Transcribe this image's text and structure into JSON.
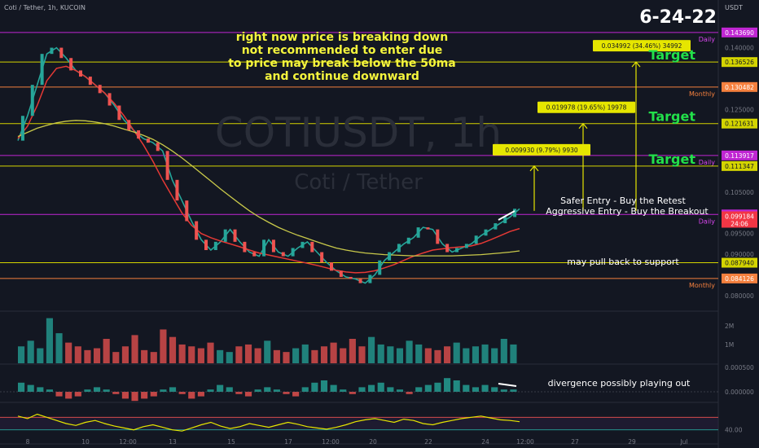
{
  "header": {
    "symbol_line": "Coti / Tether, 1h, KUCOIN"
  },
  "date_stamp": "6-24-22",
  "watermark": {
    "symbol": "COTIUSDT, 1h",
    "name": "Coti / Tether"
  },
  "currency": "USDT",
  "annotations": {
    "main_note": [
      "right now price is breaking down",
      "not recommended to enter due",
      "to price may break below the 50ma",
      "and continue downward"
    ],
    "safer_entry": "Safer Entry - Buy the Retest",
    "aggressive_entry": "Aggressive Entry - Buy the Breakout",
    "pullback": "may pull back to support",
    "divergence": "divergence possibly playing out"
  },
  "chart_data": {
    "type": "line",
    "title": "COTIUSDT, 1h",
    "series": [
      {
        "name": "",
        "values": [
          0.1175,
          0.1235,
          0.131,
          0.1385,
          0.14,
          0.1375,
          0.1345,
          0.133,
          0.131,
          0.129,
          0.126,
          0.1225,
          0.12,
          0.118,
          0.117,
          0.115,
          0.108,
          0.103,
          0.098,
          0.0935,
          0.091,
          0.093,
          0.096,
          0.093,
          0.0905,
          0.0895,
          0.0935,
          0.0905,
          0.0895,
          0.0915,
          0.093,
          0.0905,
          0.088,
          0.086,
          0.0845,
          0.084,
          0.083,
          0.085,
          0.0885,
          0.0905,
          0.0925,
          0.094,
          0.0965,
          0.096,
          0.0925,
          0.0905,
          0.0915,
          0.0925,
          0.0945,
          0.096,
          0.0975,
          0.099,
          0.101
        ]
      },
      {
        "name": "",
        "values": [
          0.118,
          0.121,
          0.126,
          0.132,
          0.135,
          0.1355,
          0.1345,
          0.133,
          0.131,
          0.129,
          0.1265,
          0.1235,
          0.12,
          0.1165,
          0.1125,
          0.108,
          0.104,
          0.1,
          0.097,
          0.095,
          0.094,
          0.0932,
          0.0925,
          0.0918,
          0.091,
          0.0903,
          0.0898,
          0.0893,
          0.0888,
          0.0883,
          0.0878,
          0.0873,
          0.0867,
          0.0861,
          0.0857,
          0.0855,
          0.0856,
          0.086,
          0.0867,
          0.0875,
          0.0885,
          0.0895,
          0.0903,
          0.091,
          0.0913,
          0.0916,
          0.0918,
          0.092,
          0.0926,
          0.0935,
          0.0945,
          0.0955,
          0.0962
        ]
      },
      {
        "name": "",
        "values": [
          0.1185,
          0.1195,
          0.1205,
          0.1212,
          0.1218,
          0.1222,
          0.1224,
          0.1223,
          0.122,
          0.1216,
          0.121,
          0.1203,
          0.1196,
          0.1188,
          0.1178,
          0.1165,
          0.115,
          0.1133,
          0.1115,
          0.1096,
          0.1077,
          0.1058,
          0.104,
          0.1022,
          0.1005,
          0.099,
          0.0977,
          0.0965,
          0.0955,
          0.0946,
          0.0938,
          0.093,
          0.0922,
          0.0915,
          0.091,
          0.0906,
          0.0903,
          0.0901,
          0.0899,
          0.0898,
          0.0897,
          0.0896,
          0.0896,
          0.0896,
          0.0896,
          0.0896,
          0.0897,
          0.0898,
          0.0899,
          0.0901,
          0.0903,
          0.0905,
          0.0908
        ]
      }
    ],
    "x_ticks": [
      "8",
      "10",
      "12:00",
      "13",
      "15",
      "17",
      "12:00",
      "20",
      "22",
      "24",
      "12:00",
      "27",
      "29",
      "Jul"
    ],
    "y_ticks": [
      0.145,
      0.14,
      0.135,
      0.13,
      0.125,
      0.12,
      0.115,
      0.11,
      0.105,
      0.1,
      0.095,
      0.09,
      0.085,
      0.08
    ],
    "ylim": [
      0.077,
      0.148
    ],
    "levels": [
      {
        "value": 0.14369,
        "label": "0.143690",
        "tag": "Daily",
        "color": "#c026d3",
        "tag_color": "#d946ef"
      },
      {
        "value": 0.136526,
        "label": "0.136526",
        "tag": "",
        "color": "#d4d400",
        "tag_color": "#d4d400"
      },
      {
        "value": 0.130482,
        "label": "0.130482",
        "tag": "Monthly",
        "color": "#f5803e",
        "tag_color": "#f5803e"
      },
      {
        "value": 0.121631,
        "label": "0.121631",
        "tag": "",
        "color": "#d4d400",
        "tag_color": "#d4d400"
      },
      {
        "value": 0.113917,
        "label": "0.113917",
        "tag": "Daily",
        "color": "#c026d3",
        "tag_color": "#d946ef"
      },
      {
        "value": 0.111347,
        "label": "0.111347",
        "tag": "",
        "color": "#d4d400",
        "tag_color": "#d4d400"
      },
      {
        "value": 0.099626,
        "label": "0.099626",
        "tag": "Daily",
        "color": "#c026d3",
        "tag_color": "#d946ef"
      },
      {
        "value": 0.08794,
        "label": "0.087940",
        "tag": "",
        "color": "#d4d400",
        "tag_color": "#d4d400"
      },
      {
        "value": 0.084126,
        "label": "0.084126",
        "tag": "Monthly",
        "color": "#f5803e",
        "tag_color": "#f5803e"
      }
    ],
    "last_price": {
      "value": 0.099184,
      "label": "0.099184",
      "countdown": "24:06"
    },
    "targets": [
      {
        "label": "Target",
        "level": 0.111347,
        "box": "0.009930 (9.79%) 9930"
      },
      {
        "label": "Target",
        "level": 0.121631,
        "box": "0.019978 (19.65%) 19978"
      },
      {
        "label": "Target",
        "level": 0.136526,
        "box": "0.034992 (34.46%) 34992"
      }
    ],
    "volume_panel": {
      "y_ticks": [
        "2M",
        "1M"
      ],
      "values": [
        0.9,
        1.2,
        0.8,
        2.4,
        1.6,
        1.1,
        0.9,
        0.7,
        0.8,
        1.3,
        0.6,
        0.9,
        1.5,
        0.7,
        0.6,
        1.8,
        1.4,
        1.0,
        0.9,
        0.8,
        1.1,
        0.7,
        0.6,
        0.9,
        1.0,
        0.8,
        1.2,
        0.7,
        0.6,
        0.8,
        1.0,
        0.7,
        0.9,
        1.1,
        0.8,
        1.3,
        0.9,
        1.4,
        1.0,
        0.9,
        0.8,
        1.2,
        1.0,
        0.8,
        0.7,
        0.9,
        1.1,
        0.8,
        0.9,
        1.0,
        0.8,
        1.3,
        1.0
      ]
    },
    "momentum_panel": {
      "y_ticks": [
        "0.000500",
        "0.000000"
      ],
      "values": [
        0.4,
        0.3,
        0.2,
        0.1,
        -0.2,
        -0.3,
        -0.2,
        0.1,
        0.2,
        0.1,
        -0.1,
        -0.3,
        -0.4,
        -0.3,
        -0.2,
        0.1,
        0.2,
        -0.1,
        -0.3,
        -0.2,
        0.1,
        0.3,
        0.2,
        -0.1,
        -0.2,
        0.1,
        0.2,
        0.1,
        -0.1,
        -0.2,
        0.2,
        0.4,
        0.5,
        0.3,
        0.1,
        -0.1,
        0.2,
        0.3,
        0.4,
        0.2,
        0.1,
        -0.1,
        0.2,
        0.3,
        0.4,
        0.6,
        0.5,
        0.3,
        0.2,
        0.3,
        0.2,
        0.1,
        0.1
      ]
    },
    "rsi_panel": {
      "y_ticks": [
        "40.00"
      ],
      "values": [
        62,
        58,
        65,
        60,
        55,
        50,
        47,
        52,
        55,
        50,
        46,
        43,
        40,
        45,
        48,
        44,
        40,
        38,
        43,
        48,
        52,
        46,
        42,
        45,
        50,
        47,
        44,
        48,
        52,
        49,
        45,
        43,
        41,
        44,
        48,
        53,
        56,
        58,
        55,
        52,
        57,
        55,
        50,
        48,
        52,
        55,
        58,
        60,
        62,
        59,
        56,
        55,
        53
      ],
      "ylim": [
        20,
        80
      ]
    },
    "grid": false
  }
}
